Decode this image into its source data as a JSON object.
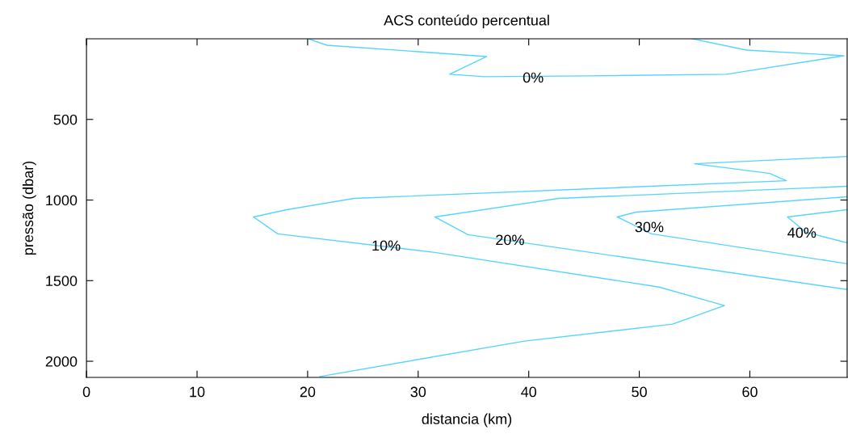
{
  "chart_data": {
    "type": "line",
    "title": "ACS conteúdo percentual",
    "xlabel": "distancia (km)",
    "ylabel": "pressão (dbar)",
    "xlim": [
      0,
      68.8
    ],
    "xticks": [
      0,
      10,
      20,
      30,
      40,
      50,
      60
    ],
    "ylim": [
      2100,
      0
    ],
    "yticks": [
      500,
      1000,
      1500,
      2000
    ],
    "grid": false,
    "marker": "none",
    "line_style": "solid",
    "series": [
      {
        "color": "#55d4ff",
        "x": [
          20.07,
          21.75,
          36.2,
          32.85,
          36.0,
          45.5,
          57.9,
          68.5,
          59.7,
          54.8
        ],
        "values": [
          0,
          40,
          110,
          220,
          235,
          230,
          220,
          105,
          70,
          0
        ]
      },
      {
        "color": "#55d4ff",
        "x": [
          68.8,
          55.0,
          61.8,
          63.3,
          24.2,
          18.1,
          15.1,
          17.3,
          31.5,
          51.8,
          57.7,
          53.0,
          39.6,
          21.1
        ],
        "values": [
          730,
          775,
          835,
          880,
          990,
          1060,
          1105,
          1210,
          1325,
          1540,
          1655,
          1770,
          1875,
          2095
        ]
      },
      {
        "color": "#55d4ff",
        "x": [
          68.8,
          42.7,
          31.5,
          34.5,
          68.8
        ],
        "values": [
          915,
          990,
          1105,
          1215,
          1555
        ]
      },
      {
        "color": "#55d4ff",
        "x": [
          68.8,
          49.7,
          48.0,
          51.1,
          68.8
        ],
        "values": [
          980,
          1075,
          1105,
          1210,
          1395
        ]
      },
      {
        "color": "#55d4ff",
        "x": [
          68.8,
          63.4,
          65.1,
          68.8
        ],
        "values": [
          1060,
          1105,
          1200,
          1265
        ]
      }
    ],
    "annotations": [
      {
        "text": "0%",
        "x": 40.4,
        "y": 248
      },
      {
        "text": "10%",
        "x": 27.1,
        "y": 1290
      },
      {
        "text": "20%",
        "x": 38.3,
        "y": 1255
      },
      {
        "text": "30%",
        "x": 50.9,
        "y": 1175
      },
      {
        "text": "40%",
        "x": 64.7,
        "y": 1210
      }
    ]
  }
}
